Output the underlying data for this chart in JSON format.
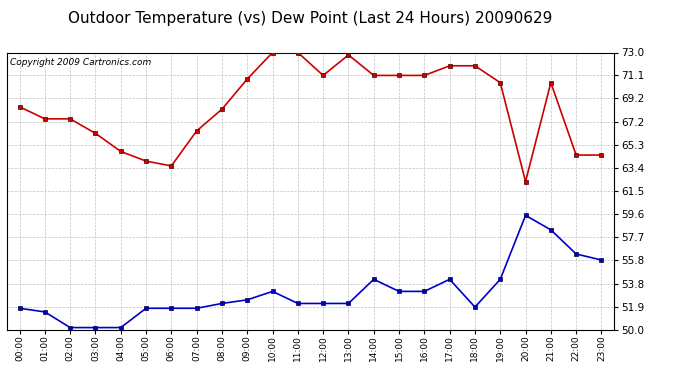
{
  "title": "Outdoor Temperature (vs) Dew Point (Last 24 Hours) 20090629",
  "copyright": "Copyright 2009 Cartronics.com",
  "hours": [
    "00:00",
    "01:00",
    "02:00",
    "03:00",
    "04:00",
    "05:00",
    "06:00",
    "07:00",
    "08:00",
    "09:00",
    "10:00",
    "11:00",
    "12:00",
    "13:00",
    "14:00",
    "15:00",
    "16:00",
    "17:00",
    "18:00",
    "19:00",
    "20:00",
    "21:00",
    "22:00",
    "23:00"
  ],
  "temp": [
    68.5,
    67.5,
    67.5,
    66.3,
    64.8,
    64.0,
    63.6,
    66.5,
    68.3,
    70.8,
    73.0,
    73.0,
    71.1,
    72.8,
    71.1,
    71.1,
    71.1,
    71.9,
    71.9,
    70.5,
    62.3,
    70.5,
    64.5,
    64.5
  ],
  "dewpoint": [
    51.8,
    51.5,
    50.2,
    50.2,
    50.2,
    51.8,
    51.8,
    51.8,
    52.2,
    52.5,
    53.2,
    52.2,
    52.2,
    52.2,
    54.2,
    53.2,
    53.2,
    54.2,
    51.9,
    54.2,
    59.5,
    58.3,
    56.3,
    55.8
  ],
  "ylim": [
    50.0,
    73.0
  ],
  "yticks": [
    50.0,
    51.9,
    53.8,
    55.8,
    57.7,
    59.6,
    61.5,
    63.4,
    65.3,
    67.2,
    69.2,
    71.1,
    73.0
  ],
  "temp_color": "#cc0000",
  "dew_color": "#0000cc",
  "bg_color": "#ffffff",
  "grid_color": "#c0c0c0",
  "title_fontsize": 11,
  "copyright_fontsize": 6.5
}
